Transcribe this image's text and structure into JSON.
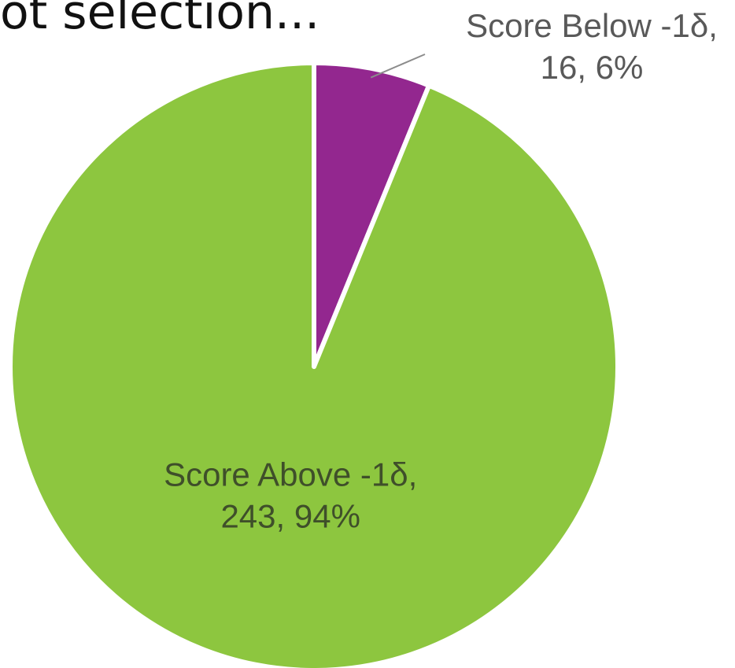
{
  "heading_fragment": "ot selection...",
  "chart_data": {
    "type": "pie",
    "title": "",
    "series": [
      {
        "values": [
          16,
          243
        ]
      }
    ],
    "slices": [
      {
        "label": "Score Below -1δ,",
        "value": 16,
        "percent": "6%",
        "value_text": "16, 6%",
        "color": "#93278f"
      },
      {
        "label": "Score Above -1δ,",
        "value": 243,
        "percent": "94%",
        "value_text": "243, 94%",
        "color": "#8dc63f"
      }
    ],
    "data_labels": {
      "small_slice_text_color": "#595959",
      "large_slice_text_color": "#3f4f2a",
      "leader_line_color": "#8c8c8c"
    },
    "slice_border_color": "#ffffff",
    "legend": "none"
  }
}
